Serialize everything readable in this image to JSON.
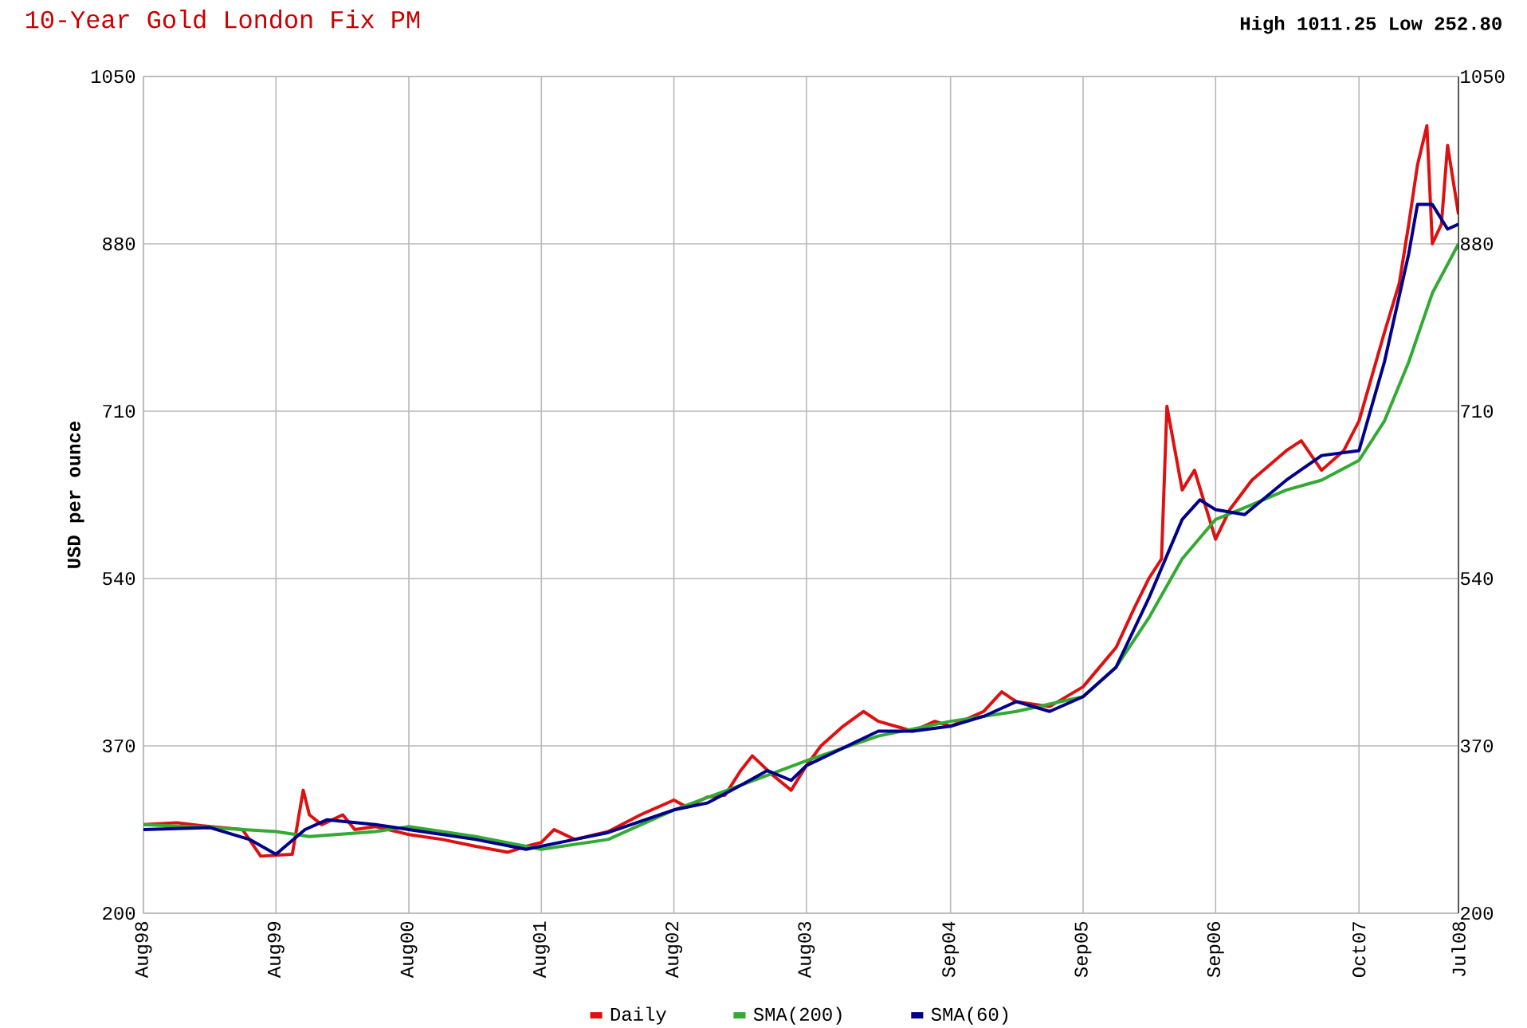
{
  "chart_data": {
    "type": "line",
    "title": "10-Year Gold London Fix PM",
    "ylabel": "USD per ounce",
    "annotations": [
      "High 1011.25 Low 252.80"
    ],
    "xlim": [
      "1998-08-01",
      "2008-07-01"
    ],
    "xticks": [
      {
        "value": "1998-08",
        "label": "Aug98"
      },
      {
        "value": "1999-08",
        "label": "Aug99"
      },
      {
        "value": "2000-08",
        "label": "Aug00"
      },
      {
        "value": "2001-08",
        "label": "Aug01"
      },
      {
        "value": "2002-08",
        "label": "Aug02"
      },
      {
        "value": "2003-08",
        "label": "Aug03"
      },
      {
        "value": "2004-09",
        "label": "Sep04"
      },
      {
        "value": "2005-09",
        "label": "Sep05"
      },
      {
        "value": "2006-09",
        "label": "Sep06"
      },
      {
        "value": "2007-10",
        "label": "Oct07"
      },
      {
        "value": "2008-07",
        "label": "Jul08"
      }
    ],
    "ylim": [
      200,
      1050
    ],
    "yticks": [
      200,
      370,
      540,
      710,
      880,
      1050
    ],
    "y2lim": [
      200,
      1050
    ],
    "y2ticks": [
      200,
      370,
      540,
      710,
      880,
      1050
    ],
    "grid": true,
    "legend": "bottom",
    "marker": "none",
    "line_style": "solid",
    "series": [
      {
        "name": "Daily",
        "color": "#dd1111",
        "x": [
          "1998-08-01",
          "1998-11-01",
          "1999-02-01",
          "1999-05-01",
          "1999-06-20",
          "1999-09-15",
          "1999-10-15",
          "1999-11-01",
          "1999-12-05",
          "2000-02-01",
          "2000-03-05",
          "2000-05-01",
          "2000-08-01",
          "2000-11-01",
          "2001-02-01",
          "2001-05-01",
          "2001-06-20",
          "2001-08-01",
          "2001-09-05",
          "2001-11-01",
          "2002-02-01",
          "2002-05-01",
          "2002-08-01",
          "2002-09-05",
          "2002-11-01",
          "2002-12-20",
          "2003-02-01",
          "2003-03-05",
          "2003-05-01",
          "2003-06-20",
          "2003-08-01",
          "2003-09-10",
          "2003-11-10",
          "2004-01-05",
          "2004-02-15",
          "2004-05-20",
          "2004-07-20",
          "2004-09-01",
          "2004-12-01",
          "2005-01-20",
          "2005-03-01",
          "2005-06-01",
          "2005-09-01",
          "2005-10-05",
          "2005-12-01",
          "2006-01-20",
          "2006-03-01",
          "2006-04-05",
          "2006-04-20",
          "2006-06-01",
          "2006-07-05",
          "2006-09-01",
          "2006-10-10",
          "2006-12-10",
          "2007-03-15",
          "2007-04-25",
          "2007-06-20",
          "2007-08-20",
          "2007-10-01",
          "2007-12-10",
          "2008-01-20",
          "2008-02-15",
          "2008-03-10",
          "2008-04-05",
          "2008-04-20",
          "2008-05-15",
          "2008-06-01",
          "2008-07-01"
        ],
        "values": [
          290,
          292,
          288,
          285,
          258,
          260,
          325,
          300,
          290,
          300,
          285,
          288,
          280,
          275,
          268,
          262,
          268,
          272,
          285,
          275,
          283,
          300,
          315,
          308,
          318,
          320,
          345,
          360,
          340,
          325,
          350,
          370,
          390,
          405,
          395,
          385,
          395,
          390,
          405,
          425,
          415,
          410,
          430,
          445,
          470,
          510,
          540,
          560,
          715,
          630,
          650,
          580,
          610,
          640,
          670,
          680,
          650,
          670,
          700,
          790,
          840,
          900,
          960,
          1000,
          880,
          900,
          980,
          910
        ]
      },
      {
        "name": "SMA(200)",
        "color": "#33aa33",
        "x": [
          "1998-08-01",
          "1999-02-01",
          "1999-08-01",
          "1999-11-01",
          "2000-05-01",
          "2000-08-01",
          "2001-02-01",
          "2001-08-01",
          "2002-02-01",
          "2002-08-01",
          "2003-02-01",
          "2003-08-01",
          "2004-02-15",
          "2004-09-01",
          "2005-03-01",
          "2005-09-01",
          "2005-12-01",
          "2006-03-01",
          "2006-06-01",
          "2006-09-01",
          "2006-12-10",
          "2007-03-15",
          "2007-06-20",
          "2007-10-01",
          "2007-12-10",
          "2008-02-15",
          "2008-04-20",
          "2008-07-01"
        ],
        "values": [
          290,
          287,
          283,
          278,
          283,
          288,
          278,
          265,
          275,
          305,
          330,
          355,
          380,
          395,
          405,
          420,
          450,
          500,
          560,
          600,
          615,
          630,
          640,
          660,
          700,
          760,
          830,
          880
        ]
      },
      {
        "name": "SMA(60)",
        "color": "#000088",
        "x": [
          "1998-08-01",
          "1999-02-01",
          "1999-05-20",
          "1999-08-01",
          "1999-10-20",
          "1999-12-20",
          "2000-05-01",
          "2000-08-01",
          "2001-02-01",
          "2001-06-20",
          "2001-11-01",
          "2002-02-01",
          "2002-08-01",
          "2002-11-01",
          "2003-02-01",
          "2003-04-15",
          "2003-06-20",
          "2003-08-01",
          "2004-02-15",
          "2004-05-20",
          "2004-09-01",
          "2004-12-01",
          "2005-03-01",
          "2005-06-01",
          "2005-09-01",
          "2005-12-01",
          "2006-03-01",
          "2006-06-01",
          "2006-07-20",
          "2006-09-01",
          "2006-11-20",
          "2007-03-15",
          "2007-06-20",
          "2007-10-01",
          "2007-12-10",
          "2008-02-15",
          "2008-03-10",
          "2008-04-20",
          "2008-06-01",
          "2008-07-01"
        ],
        "values": [
          285,
          287,
          275,
          260,
          285,
          295,
          290,
          285,
          275,
          265,
          275,
          282,
          305,
          312,
          330,
          345,
          335,
          350,
          385,
          385,
          390,
          400,
          415,
          405,
          420,
          450,
          520,
          600,
          620,
          610,
          605,
          640,
          665,
          670,
          760,
          870,
          920,
          920,
          895,
          900
        ]
      }
    ]
  }
}
